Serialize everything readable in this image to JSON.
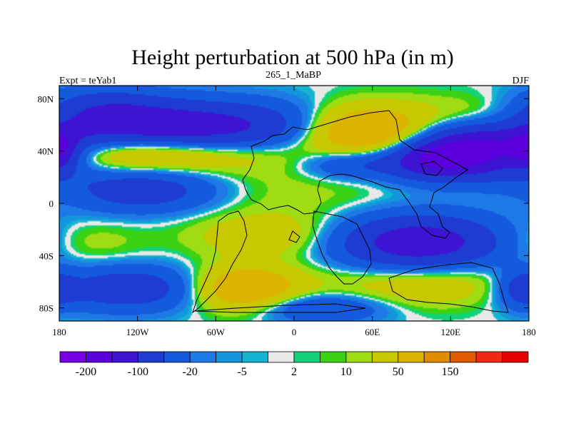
{
  "chart_data": {
    "type": "heatmap",
    "title": "Height perturbation at 500 hPa (in m)",
    "subtitle_left": "Expt = teYab1",
    "subtitle_center": "265_1_MaBP",
    "subtitle_right": "DJF",
    "x_ticks": [
      "180",
      "120W",
      "60W",
      "0",
      "60E",
      "120E",
      "180"
    ],
    "x_tick_values": [
      -180,
      -120,
      -60,
      0,
      60,
      120,
      180
    ],
    "y_ticks": [
      "80N",
      "40N",
      "0",
      "40S",
      "80S"
    ],
    "y_tick_values": [
      80,
      40,
      0,
      -40,
      -80
    ],
    "xlim": [
      -180,
      180
    ],
    "ylim": [
      -90,
      90
    ],
    "colorbar": {
      "colors": [
        "#7800e6",
        "#5a00dc",
        "#3c14d2",
        "#1e3cd2",
        "#145adc",
        "#1e78e6",
        "#1496dc",
        "#14b4d2",
        "#e8e8e8",
        "#14d278",
        "#3cd214",
        "#a0dc14",
        "#c8c800",
        "#dcb400",
        "#e08c00",
        "#e05a00",
        "#f02814",
        "#e60000"
      ],
      "labels": [
        "-200",
        "-100",
        "-20",
        "-5",
        "2",
        "10",
        "50",
        "150"
      ]
    },
    "blobs": [
      {
        "lon": -85,
        "lat": 58,
        "sx": 75,
        "sy": 14,
        "amp": -140
      },
      {
        "lon": -150,
        "lat": 72,
        "sx": 35,
        "sy": 12,
        "amp": -60
      },
      {
        "lon": 140,
        "lat": 40,
        "sx": 40,
        "sy": 14,
        "amp": -200
      },
      {
        "lon": 100,
        "lat": 32,
        "sx": 25,
        "sy": 10,
        "amp": -80
      },
      {
        "lon": 40,
        "lat": 30,
        "sx": 25,
        "sy": 8,
        "amp": -60
      },
      {
        "lon": -180,
        "lat": 40,
        "sx": 10,
        "sy": 10,
        "amp": -90
      },
      {
        "lon": -115,
        "lat": 10,
        "sx": 40,
        "sy": 12,
        "amp": -80
      },
      {
        "lon": 95,
        "lat": -30,
        "sx": 45,
        "sy": 15,
        "amp": -140
      },
      {
        "lon": -130,
        "lat": -65,
        "sx": 50,
        "sy": 12,
        "amp": -90
      },
      {
        "lon": 175,
        "lat": -65,
        "sx": 12,
        "sy": 10,
        "amp": -60
      },
      {
        "lon": 20,
        "lat": -80,
        "sx": 35,
        "sy": 8,
        "amp": -60
      },
      {
        "lon": -160,
        "lat": -30,
        "sx": 30,
        "sy": 12,
        "amp": 20
      },
      {
        "lon": -120,
        "lat": 38,
        "sx": 70,
        "sy": 10,
        "amp": 90
      },
      {
        "lon": 55,
        "lat": 55,
        "sx": 35,
        "sy": 14,
        "amp": 130
      },
      {
        "lon": 150,
        "lat": 65,
        "sx": 35,
        "sy": 12,
        "amp": 50
      },
      {
        "lon": 0,
        "lat": 10,
        "sx": 60,
        "sy": 20,
        "amp": 15
      },
      {
        "lon": -40,
        "lat": -65,
        "sx": 30,
        "sy": 12,
        "amp": 110
      },
      {
        "lon": 110,
        "lat": -62,
        "sx": 60,
        "sy": 12,
        "amp": 50
      },
      {
        "lon": -20,
        "lat": -25,
        "sx": 40,
        "sy": 12,
        "amp": 40
      }
    ]
  }
}
